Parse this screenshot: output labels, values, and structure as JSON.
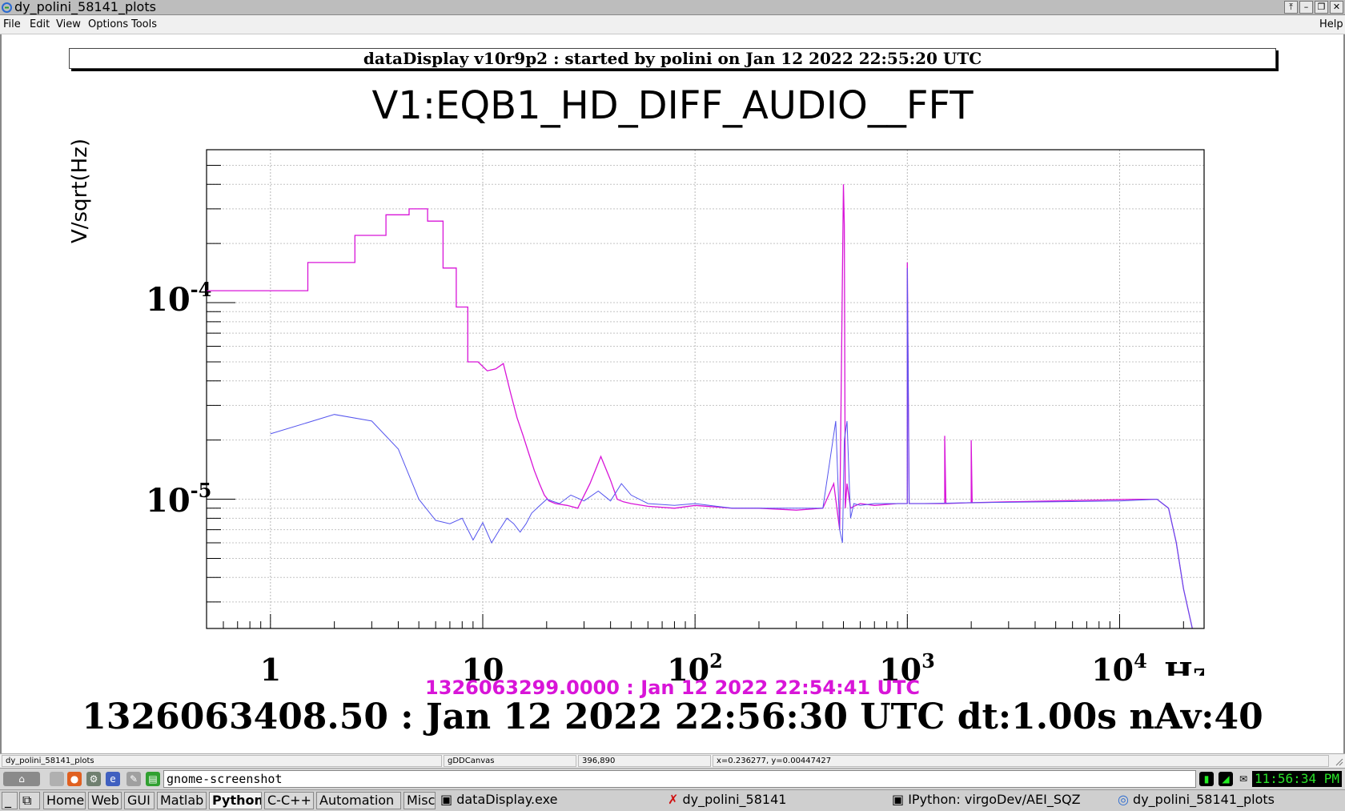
{
  "window": {
    "title": "dy_polini_58141_plots",
    "controls": [
      "⤒",
      "–",
      "❐",
      "✕"
    ]
  },
  "menu": {
    "left": [
      "File",
      "Edit",
      "View",
      "Options",
      "Tools"
    ],
    "help": "Help"
  },
  "canvas": {
    "header": "dataDisplay v10r9p2 : started by polini on Jan 12 2022 22:55:20 UTC",
    "ref_time": "1326063299.0000 : Jan 12 2022 22:54:41 UTC",
    "cur_time": "1326063408.50 : Jan 12 2022 22:56:30 UTC dt:1.00s nAv:40"
  },
  "chart_data": {
    "type": "line",
    "title": "V1:EQB1_HD_DIFF_AUDIO__FFT",
    "xlabel": "Hz",
    "ylabel": "V/sqrt(Hz)",
    "x_scale": "log",
    "y_scale": "log",
    "xlim": [
      0.5,
      25000
    ],
    "ylim": [
      2.2e-06,
      0.0006
    ],
    "grid": true,
    "x_tick_labels": [
      {
        "base": "1",
        "exp": ""
      },
      {
        "base": "10",
        "exp": ""
      },
      {
        "base": "10",
        "exp": "2"
      },
      {
        "base": "10",
        "exp": "3"
      },
      {
        "base": "10",
        "exp": "4"
      }
    ],
    "y_tick_labels": [
      {
        "base": "10",
        "exp": "-4"
      },
      {
        "base": "10",
        "exp": "-5"
      }
    ],
    "series": [
      {
        "color": "#d815d8",
        "x": [
          0.5,
          1.5,
          1.5,
          2.5,
          2.5,
          3.5,
          3.5,
          4.5,
          4.5,
          5.5,
          5.5,
          6.5,
          6.5,
          7.5,
          7.5,
          8.5,
          8.5,
          9.5,
          10.5,
          11.5,
          12.5,
          13.5,
          14.5,
          15.5,
          16.5,
          17.5,
          18.5,
          19.5,
          20.5,
          22,
          25,
          28,
          32,
          36,
          40,
          43,
          46,
          50,
          60,
          80,
          100,
          150,
          200,
          300,
          400,
          450,
          480,
          500,
          505,
          510,
          520,
          540,
          560,
          600,
          700,
          900,
          1000,
          1000,
          1020,
          1200,
          1500,
          1500,
          1520,
          2000,
          2000,
          2020,
          3000,
          5000,
          8000,
          12000,
          15000,
          17000,
          18500,
          20000,
          22000
        ],
        "y": [
          0.000115,
          0.000115,
          0.00016,
          0.00016,
          0.00022,
          0.00022,
          0.00028,
          0.00028,
          0.0003,
          0.0003,
          0.00026,
          0.00026,
          0.00015,
          0.00015,
          9.5e-05,
          9.5e-05,
          5e-05,
          5e-05,
          4.5e-05,
          4.6e-05,
          4.9e-05,
          3.5e-05,
          2.6e-05,
          2.1e-05,
          1.7e-05,
          1.4e-05,
          1.2e-05,
          1.05e-05,
          9.8e-06,
          9.5e-06,
          9.3e-06,
          9e-06,
          1.2e-05,
          1.65e-05,
          1.25e-05,
          1e-05,
          9.7e-06,
          9.5e-06,
          9.2e-06,
          9e-06,
          9.3e-06,
          9e-06,
          9e-06,
          8.8e-06,
          9e-06,
          1.2e-05,
          7e-06,
          0.0004,
          0.00025,
          9e-06,
          1.2e-05,
          9e-06,
          9.2e-06,
          9.5e-06,
          9.3e-06,
          9.5e-06,
          9.5e-06,
          0.00016,
          9.5e-06,
          9.5e-06,
          9.5e-06,
          2.1e-05,
          9.5e-06,
          9.6e-06,
          2e-05,
          9.6e-06,
          9.7e-06,
          9.8e-06,
          9.9e-06,
          1e-05,
          1e-05,
          9e-06,
          6e-06,
          3.5e-06,
          2.2e-06
        ]
      },
      {
        "color": "#5555ee",
        "x": [
          1,
          2,
          3,
          4,
          5,
          6,
          7,
          8,
          9,
          10,
          11,
          12,
          13,
          14,
          15,
          16,
          17,
          18,
          20,
          23,
          26,
          30,
          35,
          40,
          45,
          50,
          60,
          80,
          100,
          150,
          200,
          300,
          400,
          460,
          480,
          495,
          505,
          520,
          540,
          560,
          600,
          700,
          900,
          1000,
          1000,
          1020,
          1200,
          2000,
          5000,
          10000,
          15000,
          17000,
          18500,
          20000,
          22000
        ],
        "y": [
          2.15e-05,
          2.7e-05,
          2.5e-05,
          1.8e-05,
          1e-05,
          7.8e-06,
          7.5e-06,
          8e-06,
          6.2e-06,
          7.6e-06,
          6e-06,
          7e-06,
          8e-06,
          7.5e-06,
          6.8e-06,
          7.5e-06,
          8.5e-06,
          9e-06,
          1e-05,
          9.5e-06,
          1.05e-05,
          9.8e-06,
          1.1e-05,
          9.8e-06,
          1.2e-05,
          1.05e-05,
          9.5e-06,
          9.3e-06,
          9.5e-06,
          9e-06,
          9e-06,
          9e-06,
          9e-06,
          2.5e-05,
          7e-06,
          6e-06,
          2e-05,
          2.5e-05,
          8e-06,
          9.5e-06,
          9.3e-06,
          9.5e-06,
          9.5e-06,
          9.5e-06,
          0.00015,
          9.5e-06,
          9.5e-06,
          9.6e-06,
          9.7e-06,
          9.8e-06,
          1e-05,
          9e-06,
          6e-06,
          3.5e-06,
          2.2e-06
        ]
      }
    ]
  },
  "statusbar": {
    "object": "dy_polini_58141_plots",
    "canvas": "gDDCanvas",
    "pixel": "396,890",
    "coords": "x=0.236277, y=0.00447427"
  },
  "panel": {
    "run_text": "gnome-screenshot",
    "clock": "11:56:34 PM"
  },
  "taskbar": {
    "buttons": [
      "Home",
      "Web",
      "GUI",
      "Matlab",
      "Python",
      "C-C++",
      "Automation",
      "Misc"
    ],
    "windows": [
      "dataDisplay.exe",
      "dy_polini_58141",
      "IPython: virgoDev/AEI_SQZ",
      "dy_polini_58141_plots"
    ]
  }
}
